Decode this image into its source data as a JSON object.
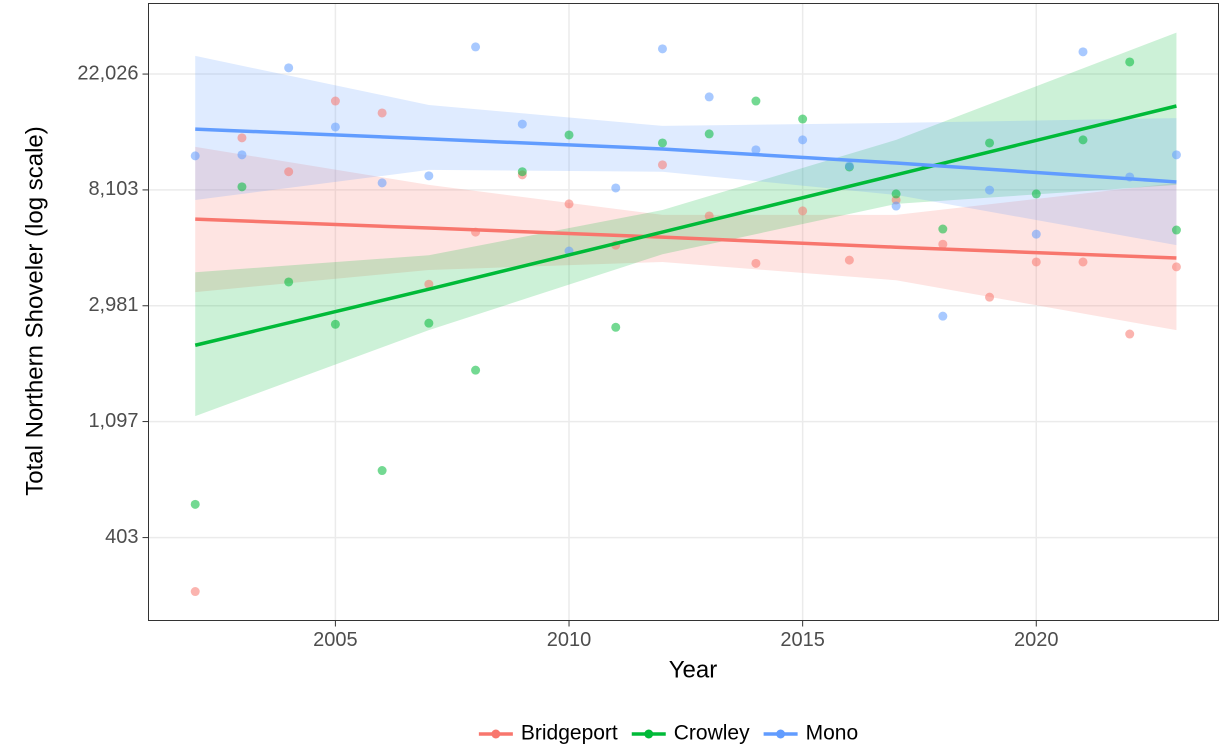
{
  "chart_data": {
    "type": "scatter",
    "x_label": "Year",
    "y_label": "Total Northern Shoveler (log scale)",
    "log_y": true,
    "grid": true,
    "legend": "bottom",
    "xlim": [
      2001,
      2023.9
    ],
    "ylim": [
      197,
      40500
    ],
    "xticks": [
      2005,
      2010,
      2015,
      2020
    ],
    "yticks": [
      403,
      {
        "value": 1097,
        "label": "1,097"
      },
      {
        "value": 2981,
        "label": "2,981"
      },
      {
        "value": 8103,
        "label": "8,103"
      },
      {
        "value": 22026,
        "label": "22,026"
      }
    ],
    "x": [
      2002,
      2003,
      2004,
      2005,
      2006,
      2007,
      2008,
      2009,
      2010,
      2011,
      2012,
      2013,
      2014,
      2015,
      2016,
      2017,
      2018,
      2019,
      2020,
      2021,
      2022,
      2023
    ],
    "fit_x": [
      2002,
      2007,
      2012,
      2017,
      2023
    ],
    "series": [
      {
        "name": "Bridgeport",
        "color": "#F8766D",
        "values": [
          253,
          12700,
          9480,
          17450,
          15740,
          3590,
          5630,
          9230,
          7180,
          5030,
          10060,
          6470,
          4300,
          6760,
          4420,
          7430,
          5070,
          3210,
          4350,
          4350,
          2335,
          4170
        ],
        "fit": [
          6300,
          5830,
          5390,
          4940,
          4500
        ],
        "fit_lower": [
          3355,
          4060,
          4350,
          3715,
          2415
        ],
        "fit_upper": [
          11750,
          8460,
          6530,
          6530,
          8610
        ]
      },
      {
        "name": "Crowley",
        "color": "#00BA38",
        "values": [
          537,
          8320,
          3660,
          2540,
          719,
          2565,
          1710,
          9480,
          13020,
          2475,
          12150,
          13140,
          17450,
          14940,
          9880,
          7830,
          5780,
          12150,
          7830,
          12480,
          24450,
          5730
        ],
        "fit": [
          2120,
          3440,
          5630,
          9230,
          16720
        ],
        "fit_lower": [
          1150,
          2415,
          4650,
          7180,
          8460
        ],
        "fit_upper": [
          3980,
          4610,
          6810,
          12480,
          31500
        ]
      },
      {
        "name": "Mono",
        "color": "#619CFF",
        "values": [
          10870,
          10970,
          23240,
          13950,
          8610,
          9150,
          27850,
          14300,
          4780,
          8240,
          27380,
          18080,
          11450,
          12480,
          9970,
          7050,
          2725,
          8090,
          5530,
          26680,
          9060,
          10970
        ],
        "fit": [
          13700,
          12590,
          11540,
          10220,
          8680
        ],
        "fit_lower": [
          7430,
          9630,
          9480,
          7760,
          5030
        ],
        "fit_upper": [
          25760,
          16870,
          14080,
          14450,
          15060
        ]
      }
    ]
  }
}
